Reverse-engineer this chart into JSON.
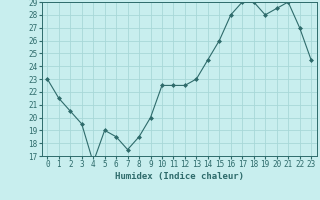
{
  "x": [
    0,
    1,
    2,
    3,
    4,
    5,
    6,
    7,
    8,
    9,
    10,
    11,
    12,
    13,
    14,
    15,
    16,
    17,
    18,
    19,
    20,
    21,
    22,
    23
  ],
  "y": [
    23,
    21.5,
    20.5,
    19.5,
    16.5,
    19,
    18.5,
    17.5,
    18.5,
    20,
    22.5,
    22.5,
    22.5,
    23,
    24.5,
    26,
    28,
    29,
    29,
    28,
    28.5,
    29,
    27,
    24.5
  ],
  "line_color": "#2e6b6b",
  "marker_color": "#2e6b6b",
  "bg_color": "#c8eeee",
  "grid_color": "#a8d8d8",
  "xlabel": "Humidex (Indice chaleur)",
  "ylim": [
    17,
    29
  ],
  "xlim_min": -0.5,
  "xlim_max": 23.5,
  "yticks": [
    17,
    18,
    19,
    20,
    21,
    22,
    23,
    24,
    25,
    26,
    27,
    28,
    29
  ],
  "xticks": [
    0,
    1,
    2,
    3,
    4,
    5,
    6,
    7,
    8,
    9,
    10,
    11,
    12,
    13,
    14,
    15,
    16,
    17,
    18,
    19,
    20,
    21,
    22,
    23
  ],
  "tick_color": "#2e6b6b",
  "label_fontsize": 5.5,
  "xlabel_fontsize": 6.5
}
